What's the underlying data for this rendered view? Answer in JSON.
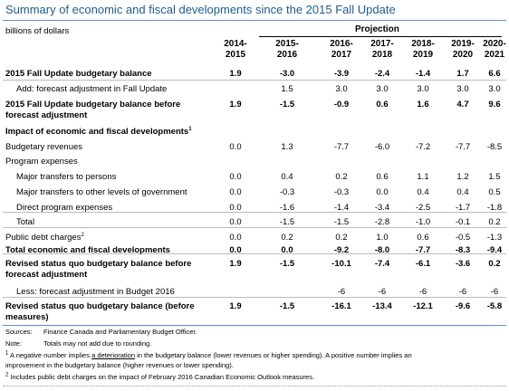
{
  "title": "Summary of economic and fiscal developments since the 2015 Fall Update",
  "units": "billions of dollars",
  "projection_label": "Projection",
  "columns": [
    {
      "line1": "2014-",
      "line2": "2015"
    },
    {
      "line1": "2015-",
      "line2": "2016"
    },
    {
      "line1": "2016-",
      "line2": "2017"
    },
    {
      "line1": "2017-",
      "line2": "2018"
    },
    {
      "line1": "2018-",
      "line2": "2019"
    },
    {
      "line1": "2019-",
      "line2": "2020"
    },
    {
      "line1": "2020-",
      "line2": "2021"
    }
  ],
  "rows": [
    {
      "label": "2015 Fall Update budgetary balance",
      "bold": true,
      "values": [
        "1.9",
        "-3.0",
        "-3.9",
        "-2.4",
        "-1.4",
        "1.7",
        "6.6"
      ]
    },
    {
      "label": "Add: forecast adjustment in Fall Update",
      "indent": 1,
      "values": [
        "",
        "1.5",
        "3.0",
        "3.0",
        "3.0",
        "3.0",
        "3.0"
      ]
    },
    {
      "label": "2015 Fall Update budgetary balance before",
      "label2": "forecast adjustment",
      "bold": true,
      "values": [
        "1.9",
        "-1.5",
        "-0.9",
        "0.6",
        "1.6",
        "4.7",
        "9.6"
      ]
    },
    {
      "label": "Impact of economic and fiscal developments",
      "sup": "1",
      "bold": true,
      "values": [
        "",
        "",
        "",
        "",
        "",
        "",
        ""
      ]
    },
    {
      "label": "Budgetary revenues",
      "values": [
        "0.0",
        "1.3",
        "-7.7",
        "-6.0",
        "-7.2",
        "-7.7",
        "-8.5"
      ]
    },
    {
      "label": "Program expenses",
      "values": [
        "",
        "",
        "",
        "",
        "",
        "",
        ""
      ]
    },
    {
      "label": "Major transfers to persons",
      "indent": 1,
      "values": [
        "0.0",
        "0.4",
        "0.2",
        "0.6",
        "1.1",
        "1.2",
        "1.5"
      ]
    },
    {
      "label": "Major transfers to other levels of government",
      "indent": 1,
      "values": [
        "0.0",
        "-0.3",
        "-0.3",
        "0.0",
        "0.4",
        "0.4",
        "0.5"
      ]
    },
    {
      "label": "Direct program expenses",
      "indent": 1,
      "values": [
        "0.0",
        "-1.6",
        "-1.4",
        "-3.4",
        "-2.5",
        "-1.7",
        "-1.8"
      ]
    },
    {
      "label": "Total",
      "indent": 1,
      "values": [
        "0.0",
        "-1.5",
        "-1.5",
        "-2.8",
        "-1.0",
        "-0.1",
        "0.2"
      ]
    },
    {
      "label": "Public debt charges",
      "sup": "2",
      "values": [
        "0.0",
        "0.2",
        "0.2",
        "1.0",
        "0.6",
        "-0.5",
        "-1.3"
      ]
    },
    {
      "label": "Total economic and fiscal developments",
      "bold": true,
      "values": [
        "0.0",
        "0.0",
        "-9.2",
        "-8.0",
        "-7.7",
        "-8.3",
        "-9.4"
      ]
    },
    {
      "label": "Revised status quo budgetary balance before",
      "label2": "forecast adjustment",
      "bold": true,
      "values": [
        "1.9",
        "-1.5",
        "-10.1",
        "-7.4",
        "-6.1",
        "-3.6",
        "0.2"
      ]
    },
    {
      "label": "Less: forecast adjustment in Budget 2016",
      "indent": 1,
      "values": [
        "",
        "",
        "-6",
        "-6",
        "-6",
        "-6",
        "-6"
      ]
    },
    {
      "label": "Revised status quo budgetary balance (before",
      "label2": "measures)",
      "bold": true,
      "values": [
        "1.9",
        "-1.5",
        "-16.1",
        "-13.4",
        "-12.1",
        "-9.6",
        "-5.8"
      ]
    }
  ],
  "notes": {
    "sources_key": "Sources:",
    "sources_text": "Finance Canada and Parliamentary Budget Officer.",
    "note_key": "Note:",
    "note_text": "Totals may not add due to rounding.",
    "fn1_marker": "1",
    "fn1_a": "A negative number implies ",
    "fn1_b": "a deterioration",
    "fn1_c": " in the budgetary balance (lower revenues or higher spending). A positive number implies an",
    "fn1_line2": "improvement in the budgetary balance (higher revenues or lower spending).",
    "fn2_marker": "2",
    "fn2_text": "Includes public debt charges on the impact of February 2016 Canadian Economic Outlook measures."
  }
}
